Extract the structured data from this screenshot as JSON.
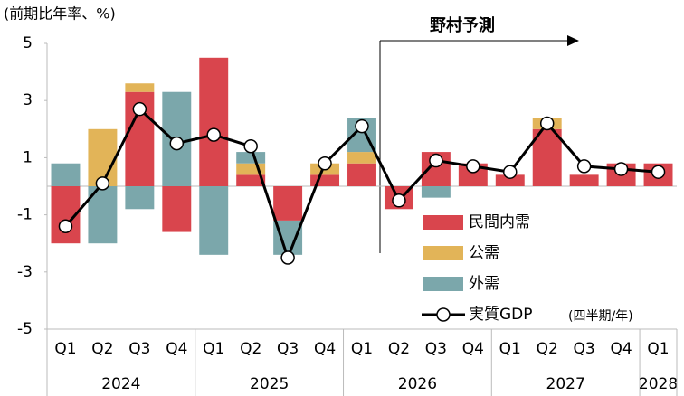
{
  "chart_data": {
    "type": "stacked-bar-line",
    "y_label": "(前期比年率、%)",
    "annotation": "野村予測",
    "note": "(四半期/年)",
    "categories": [
      "Q1",
      "Q2",
      "Q3",
      "Q4",
      "Q1",
      "Q2",
      "Q3",
      "Q4",
      "Q1",
      "Q2",
      "Q3",
      "Q4",
      "Q1",
      "Q2",
      "Q3",
      "Q4",
      "Q1"
    ],
    "x_groups": [
      {
        "label": "2024",
        "count": 4
      },
      {
        "label": "2025",
        "count": 4
      },
      {
        "label": "2026",
        "count": 4
      },
      {
        "label": "2027",
        "count": 4
      },
      {
        "label": "2028",
        "count": 1
      }
    ],
    "ylim": [
      -5,
      5
    ],
    "yticks": [
      -5,
      -3,
      -1,
      1,
      3,
      5
    ],
    "series": [
      {
        "name": "民間内需",
        "color": "#d9454d",
        "kind": "bar",
        "values": [
          -2.0,
          0,
          3.3,
          -1.6,
          4.5,
          0.4,
          -1.2,
          0.4,
          0.8,
          -0.8,
          1.2,
          0.8,
          0.4,
          2.0,
          0.4,
          0.8,
          0.8
        ]
      },
      {
        "name": "公需",
        "color": "#e2b458",
        "kind": "bar",
        "values": [
          0,
          2.0,
          0.3,
          0,
          0,
          0.4,
          0,
          0.4,
          0.4,
          0,
          0,
          0,
          0,
          0.4,
          0,
          0,
          0
        ]
      },
      {
        "name": "外需",
        "color": "#7ba7ab",
        "kind": "bar",
        "values": [
          0.8,
          -2.0,
          -0.8,
          3.3,
          -2.4,
          0.4,
          -1.2,
          0,
          1.2,
          0,
          -0.4,
          0,
          0,
          0,
          0,
          0,
          0
        ]
      },
      {
        "name": "実質GDP",
        "color": "#000000",
        "kind": "line",
        "values": [
          -1.4,
          0.1,
          2.7,
          1.5,
          1.8,
          1.4,
          -2.5,
          0.8,
          2.1,
          -0.5,
          0.9,
          0.7,
          0.5,
          2.2,
          0.7,
          0.6,
          0.5
        ]
      }
    ]
  }
}
